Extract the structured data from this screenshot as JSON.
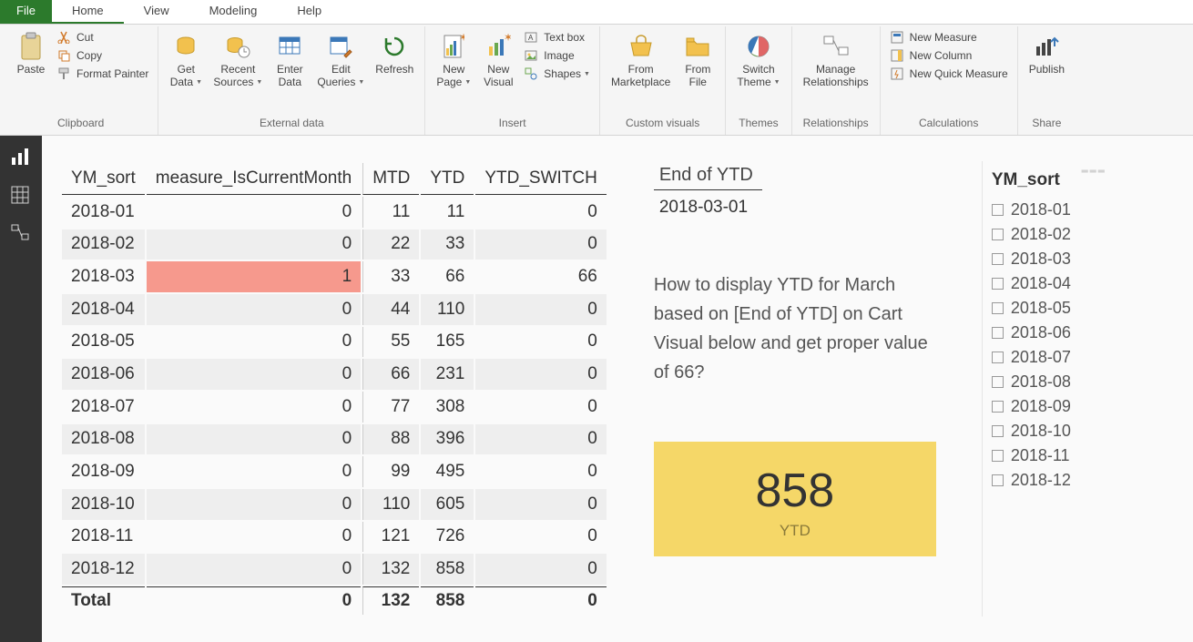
{
  "menu": {
    "file": "File",
    "tabs": [
      "Home",
      "View",
      "Modeling",
      "Help"
    ],
    "active": 0
  },
  "ribbon": {
    "clipboard": {
      "label": "Clipboard",
      "paste": "Paste",
      "cut": "Cut",
      "copy": "Copy",
      "formatPainter": "Format Painter"
    },
    "externalData": {
      "label": "External data",
      "getData": "Get\nData",
      "recentSources": "Recent\nSources",
      "enterData": "Enter\nData",
      "editQueries": "Edit\nQueries",
      "refresh": "Refresh"
    },
    "insert": {
      "label": "Insert",
      "newPage": "New\nPage",
      "newVisual": "New\nVisual",
      "textBox": "Text box",
      "image": "Image",
      "shapes": "Shapes"
    },
    "customVisuals": {
      "label": "Custom visuals",
      "fromMarketplace": "From\nMarketplace",
      "fromFile": "From\nFile"
    },
    "themes": {
      "label": "Themes",
      "switchTheme": "Switch\nTheme"
    },
    "relationships": {
      "label": "Relationships",
      "manage": "Manage\nRelationships"
    },
    "calculations": {
      "label": "Calculations",
      "newMeasure": "New Measure",
      "newColumn": "New Column",
      "newQuickMeasure": "New Quick Measure"
    },
    "share": {
      "label": "Share",
      "publish": "Publish"
    }
  },
  "table": {
    "columns": [
      "YM_sort",
      "measure_IsCurrentMonth",
      "MTD",
      "YTD",
      "YTD_SWITCH"
    ],
    "rows": [
      {
        "ym": "2018-01",
        "cur": 0,
        "mtd": 11,
        "ytd": 11,
        "sw": 0,
        "hi": false
      },
      {
        "ym": "2018-02",
        "cur": 0,
        "mtd": 22,
        "ytd": 33,
        "sw": 0,
        "hi": false
      },
      {
        "ym": "2018-03",
        "cur": 1,
        "mtd": 33,
        "ytd": 66,
        "sw": 66,
        "hi": true
      },
      {
        "ym": "2018-04",
        "cur": 0,
        "mtd": 44,
        "ytd": 110,
        "sw": 0,
        "hi": false
      },
      {
        "ym": "2018-05",
        "cur": 0,
        "mtd": 55,
        "ytd": 165,
        "sw": 0,
        "hi": false
      },
      {
        "ym": "2018-06",
        "cur": 0,
        "mtd": 66,
        "ytd": 231,
        "sw": 0,
        "hi": false
      },
      {
        "ym": "2018-07",
        "cur": 0,
        "mtd": 77,
        "ytd": 308,
        "sw": 0,
        "hi": false
      },
      {
        "ym": "2018-08",
        "cur": 0,
        "mtd": 88,
        "ytd": 396,
        "sw": 0,
        "hi": false
      },
      {
        "ym": "2018-09",
        "cur": 0,
        "mtd": 99,
        "ytd": 495,
        "sw": 0,
        "hi": false
      },
      {
        "ym": "2018-10",
        "cur": 0,
        "mtd": 110,
        "ytd": 605,
        "sw": 0,
        "hi": false
      },
      {
        "ym": "2018-11",
        "cur": 0,
        "mtd": 121,
        "ytd": 726,
        "sw": 0,
        "hi": false
      },
      {
        "ym": "2018-12",
        "cur": 0,
        "mtd": 132,
        "ytd": 858,
        "sw": 0,
        "hi": false
      }
    ],
    "total": {
      "label": "Total",
      "cur": 0,
      "mtd": 132,
      "ytd": 858,
      "sw": 0
    }
  },
  "endOfYtd": {
    "title": "End of YTD",
    "value": "2018-03-01"
  },
  "question": "How to display YTD for March based on [End of YTD] on Cart Visual below and get proper value of 66?",
  "ytdCard": {
    "value": "858",
    "label": "YTD",
    "bg": "#f5d768"
  },
  "slicer": {
    "title": "YM_sort",
    "items": [
      "2018-01",
      "2018-02",
      "2018-03",
      "2018-04",
      "2018-05",
      "2018-06",
      "2018-07",
      "2018-08",
      "2018-09",
      "2018-10",
      "2018-11",
      "2018-12"
    ]
  },
  "colors": {
    "highlight": "#f6998d",
    "altRow": "#eeeeee"
  }
}
